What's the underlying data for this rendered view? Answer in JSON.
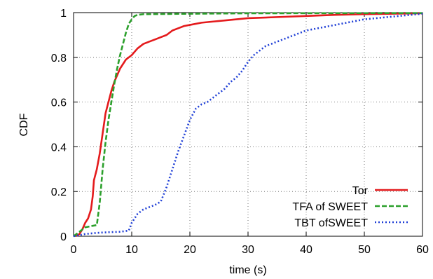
{
  "chart_data": {
    "type": "line",
    "xlabel": "time (s)",
    "ylabel": "CDF",
    "xlim": [
      0,
      60
    ],
    "ylim": [
      0,
      1
    ],
    "x_ticks": [
      "0",
      "10",
      "20",
      "30",
      "40",
      "50",
      "60"
    ],
    "y_ticks": [
      "0",
      "0.2",
      "0.4",
      "0.6",
      "0.8",
      "1"
    ],
    "grid": true,
    "legend_position": "bottom-right",
    "series": [
      {
        "name": "Tor",
        "color": "#e41a1c",
        "dash": "solid",
        "points": [
          [
            0.5,
            0.0
          ],
          [
            1.0,
            0.01
          ],
          [
            1.5,
            0.03
          ],
          [
            2.0,
            0.06
          ],
          [
            2.5,
            0.08
          ],
          [
            3.0,
            0.12
          ],
          [
            3.3,
            0.18
          ],
          [
            3.5,
            0.25
          ],
          [
            4.0,
            0.3
          ],
          [
            4.5,
            0.37
          ],
          [
            5.0,
            0.46
          ],
          [
            5.5,
            0.55
          ],
          [
            6.0,
            0.6
          ],
          [
            6.5,
            0.65
          ],
          [
            7.0,
            0.69
          ],
          [
            7.5,
            0.72
          ],
          [
            8.0,
            0.75
          ],
          [
            9.0,
            0.79
          ],
          [
            10.0,
            0.81
          ],
          [
            11.0,
            0.84
          ],
          [
            12.0,
            0.86
          ],
          [
            13.0,
            0.87
          ],
          [
            14.0,
            0.88
          ],
          [
            15.0,
            0.89
          ],
          [
            16.0,
            0.9
          ],
          [
            17.0,
            0.92
          ],
          [
            18.0,
            0.93
          ],
          [
            19.0,
            0.94
          ],
          [
            20.0,
            0.945
          ],
          [
            22.0,
            0.955
          ],
          [
            24.0,
            0.96
          ],
          [
            26.0,
            0.965
          ],
          [
            28.0,
            0.97
          ],
          [
            30.0,
            0.975
          ],
          [
            35.0,
            0.98
          ],
          [
            40.0,
            0.985
          ],
          [
            45.0,
            0.99
          ],
          [
            50.0,
            0.993
          ],
          [
            55.0,
            0.995
          ],
          [
            60.0,
            0.997
          ]
        ]
      },
      {
        "name": "TFA of SWEET",
        "color": "#2ca02c",
        "dash": "dashed",
        "points": [
          [
            0.0,
            0.0
          ],
          [
            1.0,
            0.02
          ],
          [
            2.0,
            0.04
          ],
          [
            3.0,
            0.045
          ],
          [
            4.0,
            0.05
          ],
          [
            4.5,
            0.15
          ],
          [
            5.0,
            0.3
          ],
          [
            5.5,
            0.42
          ],
          [
            6.0,
            0.52
          ],
          [
            6.5,
            0.6
          ],
          [
            7.0,
            0.68
          ],
          [
            7.5,
            0.75
          ],
          [
            8.0,
            0.81
          ],
          [
            8.5,
            0.86
          ],
          [
            9.0,
            0.91
          ],
          [
            9.5,
            0.95
          ],
          [
            10.0,
            0.97
          ],
          [
            10.5,
            0.985
          ],
          [
            11.0,
            0.99
          ],
          [
            12.0,
            0.993
          ],
          [
            20.0,
            0.995
          ],
          [
            30.0,
            0.997
          ],
          [
            60.0,
            0.998
          ]
        ]
      },
      {
        "name": "TBT ofSWEET",
        "color": "#1f3fd6",
        "dash": "dotted",
        "points": [
          [
            0.0,
            0.0
          ],
          [
            2.0,
            0.01
          ],
          [
            4.0,
            0.015
          ],
          [
            6.0,
            0.018
          ],
          [
            8.0,
            0.02
          ],
          [
            9.5,
            0.025
          ],
          [
            10.0,
            0.06
          ],
          [
            11.0,
            0.1
          ],
          [
            12.0,
            0.12
          ],
          [
            13.0,
            0.13
          ],
          [
            14.0,
            0.14
          ],
          [
            15.0,
            0.155
          ],
          [
            16.0,
            0.22
          ],
          [
            17.0,
            0.3
          ],
          [
            18.0,
            0.38
          ],
          [
            19.0,
            0.45
          ],
          [
            20.0,
            0.52
          ],
          [
            21.0,
            0.57
          ],
          [
            22.0,
            0.59
          ],
          [
            23.0,
            0.6
          ],
          [
            24.0,
            0.62
          ],
          [
            25.0,
            0.64
          ],
          [
            26.0,
            0.66
          ],
          [
            27.0,
            0.69
          ],
          [
            28.0,
            0.71
          ],
          [
            29.0,
            0.74
          ],
          [
            30.0,
            0.78
          ],
          [
            31.0,
            0.81
          ],
          [
            32.0,
            0.83
          ],
          [
            33.0,
            0.85
          ],
          [
            34.0,
            0.86
          ],
          [
            35.0,
            0.87
          ],
          [
            36.0,
            0.88
          ],
          [
            37.0,
            0.89
          ],
          [
            38.0,
            0.9
          ],
          [
            40.0,
            0.92
          ],
          [
            42.0,
            0.93
          ],
          [
            44.0,
            0.94
          ],
          [
            46.0,
            0.95
          ],
          [
            48.0,
            0.96
          ],
          [
            50.0,
            0.97
          ],
          [
            52.0,
            0.975
          ],
          [
            54.0,
            0.98
          ],
          [
            56.0,
            0.985
          ],
          [
            58.0,
            0.99
          ],
          [
            60.0,
            0.995
          ]
        ]
      }
    ]
  }
}
